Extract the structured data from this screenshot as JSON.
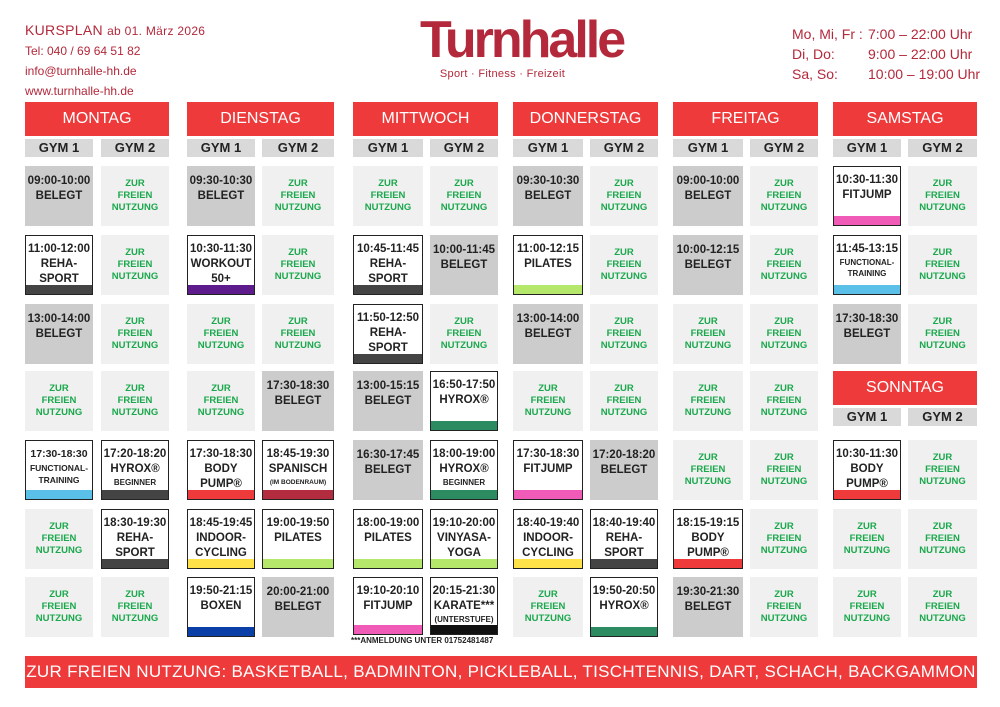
{
  "header": {
    "title": "KURSPLAN",
    "title_sub": "ab 01. März 2026",
    "phone": "Tel: 040 / 69 64 51 82",
    "email": "info@turnhalle-hh.de",
    "web": "www.turnhalle-hh.de"
  },
  "logo": {
    "name": "Turnhalle",
    "tagline": "Sport · Fitness · Freizeit"
  },
  "hours": [
    {
      "days": "Mo, Mi, Fr :",
      "time": "7:00 – 22:00 Uhr"
    },
    {
      "days": "Di, Do:",
      "time": "9:00 – 22:00 Uhr"
    },
    {
      "days": "Sa, So:",
      "time": "10:00 – 19:00 Uhr"
    }
  ],
  "gym1": "GYM 1",
  "gym2": "GYM 2",
  "days": {
    "montag": "MONTAG",
    "dienstag": "DIENSTAG",
    "mittwoch": "MITTWOCH",
    "donnerstag": "DONNERSTAG",
    "freitag": "FREITAG",
    "samstag": "SAMSTAG",
    "sonntag": "SONNTAG"
  },
  "free": {
    "l1": "ZUR",
    "l2": "FREIEN",
    "l3": "NUTZUNG"
  },
  "classes": {
    "mo_g1_1": {
      "time": "09:00-10:00",
      "name": "BELEGT"
    },
    "mo_g1_2": {
      "time": "11:00-12:00",
      "name": "REHA-",
      "name2": "SPORT"
    },
    "mo_g1_3": {
      "time": "13:00-14:00",
      "name": "BELEGT"
    },
    "mo_g1_5": {
      "time": "17:30-18:30",
      "name": "FUNCTIONAL-",
      "name2": "TRAINING"
    },
    "mo_g2_5": {
      "time": "17:20-18:20",
      "name": "HYROX®",
      "sub": "BEGINNER"
    },
    "mo_g2_6": {
      "time": "18:30-19:30",
      "name": "REHA-",
      "name2": "SPORT"
    },
    "di_g1_1": {
      "time": "09:30-10:30",
      "name": "BELEGT"
    },
    "di_g1_2": {
      "time": "10:30-11:30",
      "name": "WORKOUT",
      "name2": "50+"
    },
    "di_g2_4": {
      "time": "17:30-18:30",
      "name": "BELEGT"
    },
    "di_g1_5": {
      "time": "17:30-18:30",
      "name": "BODY",
      "name2": "PUMP®"
    },
    "di_g2_5": {
      "time": "18:45-19:30",
      "name": "SPANISCH",
      "sub": "(IM BODENRAUM)"
    },
    "di_g1_6": {
      "time": "18:45-19:45",
      "name": "INDOOR-",
      "name2": "CYCLING"
    },
    "di_g2_6": {
      "time": "19:00-19:50",
      "name": "PILATES"
    },
    "di_g1_7": {
      "time": "19:50-21:15",
      "name": "BOXEN"
    },
    "di_g2_7": {
      "time": "20:00-21:00",
      "name": "BELEGT"
    },
    "mi_g1_2": {
      "time": "10:45-11:45",
      "name": "REHA-",
      "name2": "SPORT"
    },
    "mi_g2_2": {
      "time": "10:00-11:45",
      "name": "BELEGT"
    },
    "mi_g1_3": {
      "time": "11:50-12:50",
      "name": "REHA-",
      "name2": "SPORT"
    },
    "mi_g1_4": {
      "time": "13:00-15:15",
      "name": "BELEGT"
    },
    "mi_g2_4": {
      "time": "16:50-17:50",
      "name": "HYROX®"
    },
    "mi_g1_5": {
      "time": "16:30-17:45",
      "name": "BELEGT"
    },
    "mi_g2_5": {
      "time": "18:00-19:00",
      "name": "HYROX®",
      "sub": "BEGINNER"
    },
    "mi_g1_6": {
      "time": "18:00-19:00",
      "name": "PILATES"
    },
    "mi_g2_6": {
      "time": "19:10-20:00",
      "name": "VINYASA-",
      "name2": "YOGA"
    },
    "mi_g1_7": {
      "time": "19:10-20:10",
      "name": "FITJUMP"
    },
    "mi_g2_7": {
      "time": "20:15-21:30",
      "name": "KARATE***",
      "sub": "(UNTERSTUFE)"
    },
    "do_g1_1": {
      "time": "09:30-10:30",
      "name": "BELEGT"
    },
    "do_g1_2": {
      "time": "11:00-12:15",
      "name": "PILATES"
    },
    "do_g1_3": {
      "time": "13:00-14:00",
      "name": "BELEGT"
    },
    "do_g1_5": {
      "time": "17:30-18:30",
      "name": "FITJUMP"
    },
    "do_g2_5": {
      "time": "17:20-18:20",
      "name": "BELEGT"
    },
    "do_g1_6": {
      "time": "18:40-19:40",
      "name": "INDOOR-",
      "name2": "CYCLING"
    },
    "do_g2_6": {
      "time": "18:40-19:40",
      "name": "REHA-",
      "name2": "SPORT"
    },
    "do_g2_7": {
      "time": "19:50-20:50",
      "name": "HYROX®"
    },
    "fr_g1_1": {
      "time": "09:00-10:00",
      "name": "BELEGT"
    },
    "fr_g1_2": {
      "time": "10:00-12:15",
      "name": "BELEGT"
    },
    "fr_g1_6": {
      "time": "18:15-19:15",
      "name": "BODY",
      "name2": "PUMP®"
    },
    "fr_g1_7": {
      "time": "19:30-21:30",
      "name": "BELEGT"
    },
    "sa_g1_1": {
      "time": "10:30-11:30",
      "name": "FITJUMP"
    },
    "sa_g1_2": {
      "time": "11:45-13:15",
      "name": "FUNCTIONAL-",
      "name2": "TRAINING"
    },
    "sa_g1_3": {
      "time": "17:30-18:30",
      "name": "BELEGT"
    },
    "so_g1_1": {
      "time": "10:30-11:30",
      "name": "BODY",
      "name2": "PUMP®"
    }
  },
  "colors": {
    "red": "#ee3a3b",
    "brand": "#b3283a",
    "green": "#1aa84c",
    "dark": "#444444",
    "purple": "#5e1b8c",
    "blue": "#5bc0e8",
    "pink": "#f05bb8",
    "lime": "#b5e86a",
    "yellow": "#ffe14a",
    "teal": "#2d8b62",
    "navy": "#0a3fa8",
    "wine": "#b32b3f",
    "black": "#111111"
  },
  "note": "***ANMELDUNG UNTER 01752481487",
  "footer": "ZUR FREIEN NUTZUNG: BASKETBALL, BADMINTON, PICKLEBALL, TISCHTENNIS, DART, SCHACH, BACKGAMMON"
}
